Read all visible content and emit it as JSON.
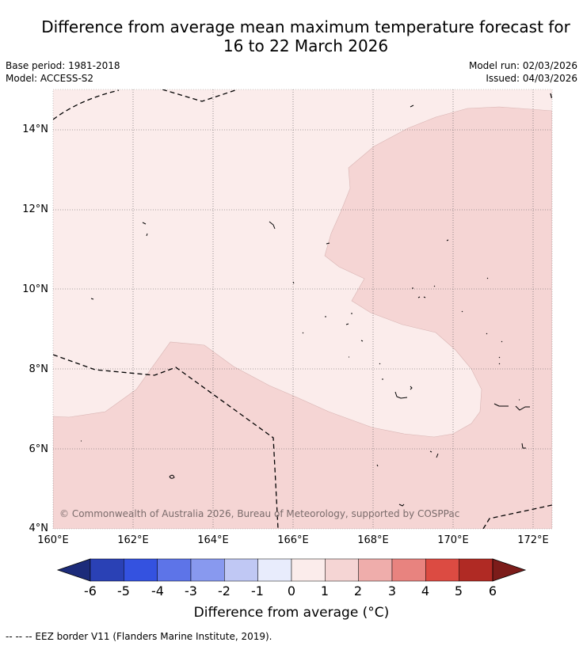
{
  "title": {
    "line1": "Difference from average mean maximum temperature forecast for",
    "line2": "16 to 22 March 2026"
  },
  "meta": {
    "base_period": "Base period: 1981-2018",
    "model": "Model: ACCESS-S2",
    "model_run": "Model run: 02/03/2026",
    "issued": "Issued: 04/03/2026"
  },
  "axes": {
    "lat_labels": [
      "14°N",
      "12°N",
      "10°N",
      "8°N",
      "6°N",
      "4°N"
    ],
    "lon_labels": [
      "160°E",
      "162°E",
      "164°E",
      "166°E",
      "168°E",
      "170°E",
      "172°E"
    ]
  },
  "copyright": "© Commonwealth of Australia 2026, Bureau of Meteorology, supported by COSPPac",
  "colorbar": {
    "labels": [
      "-6",
      "-5",
      "-4",
      "-3",
      "-2",
      "-1",
      "0",
      "1",
      "2",
      "3",
      "4",
      "5",
      "6"
    ],
    "colors": [
      "#1c2b7a",
      "#2a41b5",
      "#3452e0",
      "#5d74e8",
      "#8899ef",
      "#c0c8f4",
      "#e8ecfc",
      "#fbeceb",
      "#f5d5d4",
      "#efadab",
      "#e8837f",
      "#dc4b42",
      "#b02a24",
      "#7c1c1a"
    ],
    "title": "Difference from average (°C)"
  },
  "fills": {
    "light": "#fbeceb",
    "medium": "#f5d5d4"
  },
  "footer": "--  --  -- EEZ border V11 (Flanders Marine Institute, 2019)."
}
